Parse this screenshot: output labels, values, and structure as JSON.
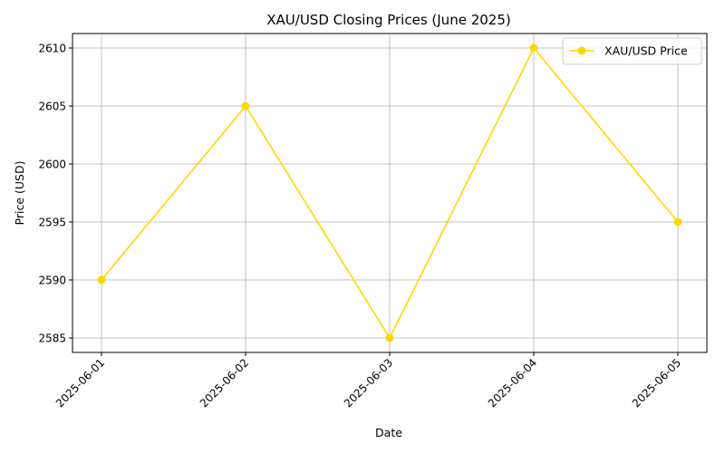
{
  "chart_data": {
    "type": "line",
    "title": "XAU/USD Closing Prices (June 2025)",
    "xlabel": "Date",
    "ylabel": "Price (USD)",
    "categories": [
      "2025-06-01",
      "2025-06-02",
      "2025-06-03",
      "2025-06-04",
      "2025-06-05"
    ],
    "series": [
      {
        "name": "XAU/USD Price",
        "values": [
          2590,
          2605,
          2585,
          2610,
          2595
        ],
        "color": "#FFD700",
        "marker": "circle"
      }
    ],
    "yticks": [
      2585,
      2590,
      2595,
      2600,
      2605,
      2610
    ],
    "ylim": [
      2583.75,
      2611.25
    ],
    "grid": true,
    "legend_position": "top-right",
    "xtick_rotation": "45 degrees"
  }
}
